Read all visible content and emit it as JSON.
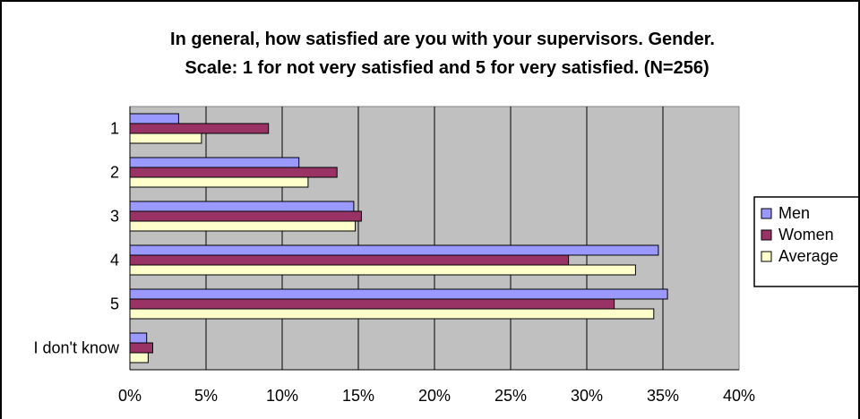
{
  "chart_data": {
    "type": "bar",
    "orientation": "horizontal",
    "title": "In general, how satisfied are you with your supervisors. Gender.",
    "subtitle": "Scale: 1 for not very satisfied and 5 for very satisfied. (N=256)",
    "categories": [
      "1",
      "2",
      "3",
      "4",
      "5",
      "I don't know"
    ],
    "series": [
      {
        "name": "Men",
        "color": "#9999ff",
        "values": [
          3.2,
          11.1,
          14.7,
          34.7,
          35.3,
          1.1
        ]
      },
      {
        "name": "Women",
        "color": "#993366",
        "values": [
          9.1,
          13.6,
          15.2,
          28.8,
          31.8,
          1.5
        ]
      },
      {
        "name": "Average",
        "color": "#ffffcc",
        "values": [
          4.7,
          11.7,
          14.8,
          33.2,
          34.4,
          1.2
        ]
      }
    ],
    "x_ticks": [
      "0%",
      "5%",
      "10%",
      "15%",
      "20%",
      "25%",
      "30%",
      "35%",
      "40%"
    ],
    "xlim": [
      0,
      40
    ],
    "xlabel": "",
    "ylabel": "",
    "grid": true,
    "plot_background": "#c0c0c0",
    "legend_position": "right"
  }
}
